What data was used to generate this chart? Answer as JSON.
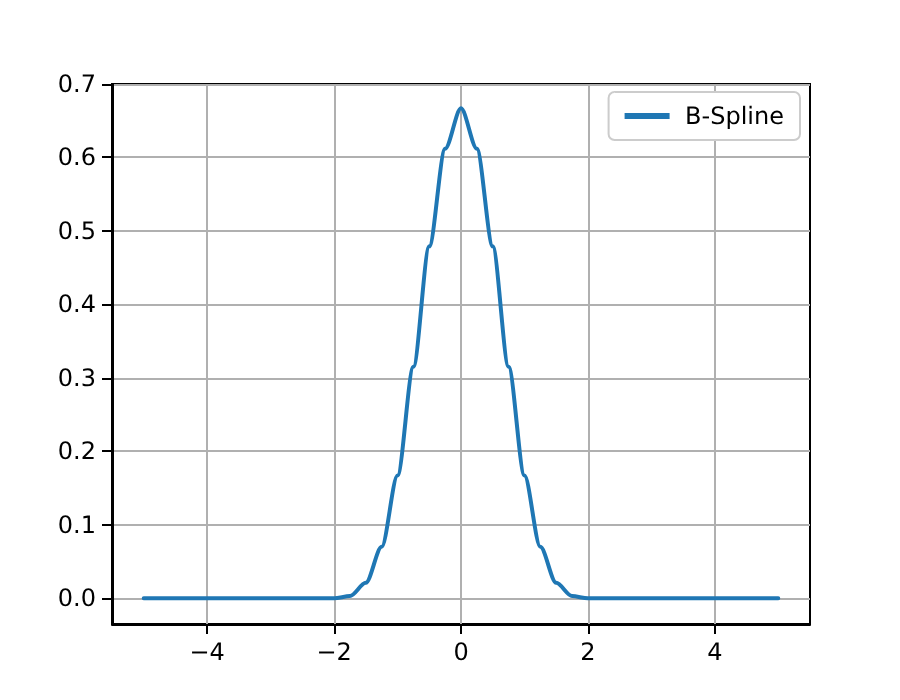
{
  "chart_data": {
    "type": "line",
    "x": [
      -5,
      -2,
      -1.75,
      -1.5,
      -1.25,
      -1,
      -0.75,
      -0.5,
      -0.25,
      0,
      0.25,
      0.5,
      0.75,
      1,
      1.25,
      1.5,
      1.75,
      2,
      5
    ],
    "series": [
      {
        "name": "B-Spline",
        "color": "#1f77b4",
        "values": [
          0,
          0,
          0.003,
          0.021,
          0.07,
          0.167,
          0.315,
          0.479,
          0.612,
          0.667,
          0.612,
          0.479,
          0.315,
          0.167,
          0.07,
          0.021,
          0.003,
          0,
          0
        ]
      }
    ],
    "xlim": [
      -5.5,
      5.5
    ],
    "xticks": [
      -4,
      -2,
      0,
      2,
      4
    ],
    "ylim": [
      -0.035,
      0.7
    ],
    "yticks": [
      {
        "value": 0,
        "label": "0.0"
      },
      {
        "value": 0.1,
        "label": "0.1"
      },
      {
        "value": 0.2,
        "label": "0.2"
      },
      {
        "value": 0.3,
        "label": "0.3"
      },
      {
        "value": 0.4,
        "label": "0.4"
      },
      {
        "value": 0.5,
        "label": "0.5"
      },
      {
        "value": 0.6,
        "label": "0.6"
      },
      {
        "value": 0.7,
        "label": "0.7"
      }
    ],
    "grid": true,
    "legend": "top right",
    "marker": "none",
    "line_style": "solid"
  }
}
